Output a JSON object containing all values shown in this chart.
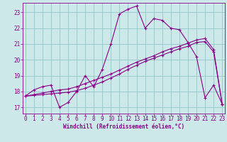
{
  "xlabel": "Windchill (Refroidissement éolien,°C)",
  "background_color": "#cce8e8",
  "grid_color": "#99cccc",
  "line_color": "#880088",
  "x_ticks": [
    0,
    1,
    2,
    3,
    4,
    5,
    6,
    7,
    8,
    9,
    10,
    11,
    12,
    13,
    14,
    15,
    16,
    17,
    18,
    19,
    20,
    21,
    22,
    23
  ],
  "y_ticks": [
    17,
    18,
    19,
    20,
    21,
    22,
    23
  ],
  "xlim": [
    -0.3,
    23.3
  ],
  "ylim": [
    16.6,
    23.6
  ],
  "series1_y": [
    17.7,
    18.1,
    18.3,
    18.4,
    17.0,
    17.3,
    18.0,
    19.0,
    18.3,
    19.4,
    21.0,
    22.9,
    23.2,
    23.4,
    22.0,
    22.6,
    22.5,
    22.0,
    21.9,
    21.1,
    20.2,
    17.6,
    18.4,
    17.2
  ],
  "series2_y": [
    17.7,
    17.75,
    17.8,
    17.85,
    17.9,
    17.95,
    18.05,
    18.2,
    18.4,
    18.6,
    18.85,
    19.1,
    19.4,
    19.65,
    19.9,
    20.1,
    20.3,
    20.5,
    20.7,
    20.85,
    21.1,
    21.15,
    20.5,
    17.2
  ],
  "series3_y": [
    17.7,
    17.8,
    17.9,
    18.0,
    18.1,
    18.15,
    18.3,
    18.5,
    18.7,
    18.9,
    19.1,
    19.35,
    19.6,
    19.85,
    20.05,
    20.25,
    20.5,
    20.7,
    20.85,
    21.05,
    21.25,
    21.35,
    20.65,
    17.2
  ],
  "xlabel_fontsize": 5.5,
  "tick_fontsize": 5.5
}
